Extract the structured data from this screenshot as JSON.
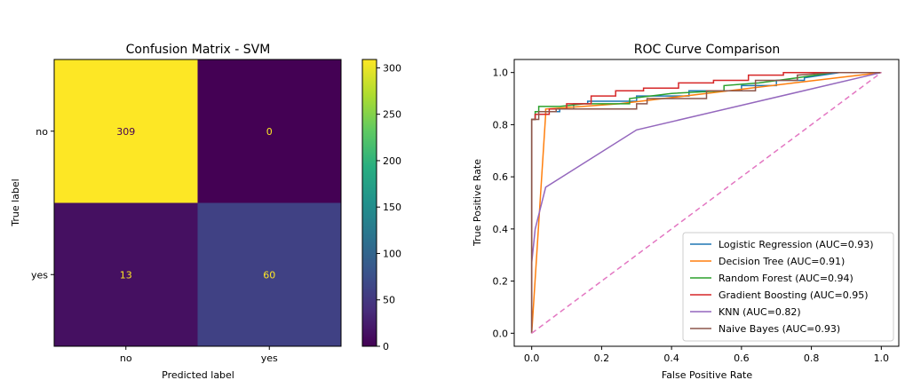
{
  "chart_data": [
    {
      "type": "heatmap",
      "title": "Confusion Matrix - SVM",
      "xlabel": "Predicted label",
      "ylabel": "True label",
      "x_categories": [
        "no",
        "yes"
      ],
      "y_categories": [
        "no",
        "yes"
      ],
      "matrix": [
        [
          309,
          0
        ],
        [
          13,
          60
        ]
      ],
      "colormap": "viridis",
      "colorbar": {
        "min": 0,
        "max": 309,
        "ticks": [
          0,
          50,
          100,
          150,
          200,
          250,
          300
        ]
      },
      "text_colors": {
        "on_dark": "#fde725",
        "on_light": "#440154"
      }
    },
    {
      "type": "line",
      "title": "ROC Curve Comparison",
      "xlabel": "False Positive Rate",
      "ylabel": "True Positive Rate",
      "xlim": [
        -0.05,
        1.05
      ],
      "ylim": [
        -0.05,
        1.05
      ],
      "xticks": [
        "0.0",
        "0.2",
        "0.4",
        "0.6",
        "0.8",
        "1.0"
      ],
      "yticks": [
        "0.0",
        "0.2",
        "0.4",
        "0.6",
        "0.8",
        "1.0"
      ],
      "legend_position": "bottom-right",
      "series": [
        {
          "name": "Logistic Regression (AUC=0.93)",
          "color": "#1f77b4",
          "x": [
            0,
            0,
            0.01,
            0.01,
            0.04,
            0.04,
            0.08,
            0.08,
            0.12,
            0.12,
            0.16,
            0.16,
            0.3,
            0.3,
            0.45,
            0.45,
            0.6,
            0.6,
            0.7,
            0.7,
            0.78,
            0.78,
            0.88,
            1.0
          ],
          "y": [
            0,
            0.82,
            0.82,
            0.84,
            0.84,
            0.85,
            0.85,
            0.86,
            0.86,
            0.88,
            0.88,
            0.89,
            0.89,
            0.91,
            0.91,
            0.93,
            0.93,
            0.95,
            0.95,
            0.97,
            0.97,
            0.98,
            1.0,
            1.0
          ]
        },
        {
          "name": "Decision Tree (AUC=0.91)",
          "color": "#ff7f0e",
          "x": [
            0,
            0.04,
            0.04,
            0.25,
            0.5,
            0.75,
            1.0
          ],
          "y": [
            0,
            0.84,
            0.86,
            0.88,
            0.92,
            0.96,
            1.0
          ]
        },
        {
          "name": "Random Forest (AUC=0.94)",
          "color": "#2ca02c",
          "x": [
            0,
            0,
            0.01,
            0.01,
            0.02,
            0.02,
            0.08,
            0.15,
            0.28,
            0.28,
            0.4,
            0.55,
            0.55,
            0.65,
            0.76,
            0.86,
            1.0
          ],
          "y": [
            0,
            0.82,
            0.82,
            0.85,
            0.85,
            0.87,
            0.87,
            0.88,
            0.88,
            0.9,
            0.92,
            0.93,
            0.95,
            0.96,
            0.98,
            1.0,
            1.0
          ]
        },
        {
          "name": "Gradient Boosting (AUC=0.95)",
          "color": "#d62728",
          "x": [
            0,
            0,
            0.01,
            0.01,
            0.05,
            0.05,
            0.1,
            0.1,
            0.17,
            0.17,
            0.24,
            0.24,
            0.32,
            0.32,
            0.42,
            0.42,
            0.52,
            0.52,
            0.62,
            0.62,
            0.72,
            0.72,
            0.85,
            1.0
          ],
          "y": [
            0,
            0.82,
            0.82,
            0.84,
            0.84,
            0.86,
            0.86,
            0.88,
            0.88,
            0.91,
            0.91,
            0.93,
            0.93,
            0.94,
            0.94,
            0.96,
            0.96,
            0.97,
            0.97,
            0.99,
            0.99,
            1.0,
            1.0,
            1.0
          ]
        },
        {
          "name": "KNN (AUC=0.82)",
          "color": "#9467bd",
          "x": [
            0,
            0,
            0.01,
            0.04,
            0.3,
            1.0
          ],
          "y": [
            0,
            0.27,
            0.4,
            0.56,
            0.78,
            1.0
          ]
        },
        {
          "name": "Naive Bayes (AUC=0.93)",
          "color": "#8c564b",
          "x": [
            0,
            0,
            0.02,
            0.02,
            0.07,
            0.07,
            0.13,
            0.13,
            0.3,
            0.3,
            0.33,
            0.33,
            0.5,
            0.5,
            0.64,
            0.64,
            0.76,
            0.76,
            0.86,
            1.0
          ],
          "y": [
            0,
            0.82,
            0.82,
            0.85,
            0.85,
            0.86,
            0.86,
            0.86,
            0.86,
            0.88,
            0.88,
            0.9,
            0.9,
            0.93,
            0.93,
            0.97,
            0.97,
            0.99,
            1.0,
            1.0
          ]
        }
      ],
      "reference_line": {
        "x": [
          0,
          1
        ],
        "y": [
          0,
          1
        ],
        "color": "#e377c2",
        "style": "dashed"
      }
    }
  ]
}
